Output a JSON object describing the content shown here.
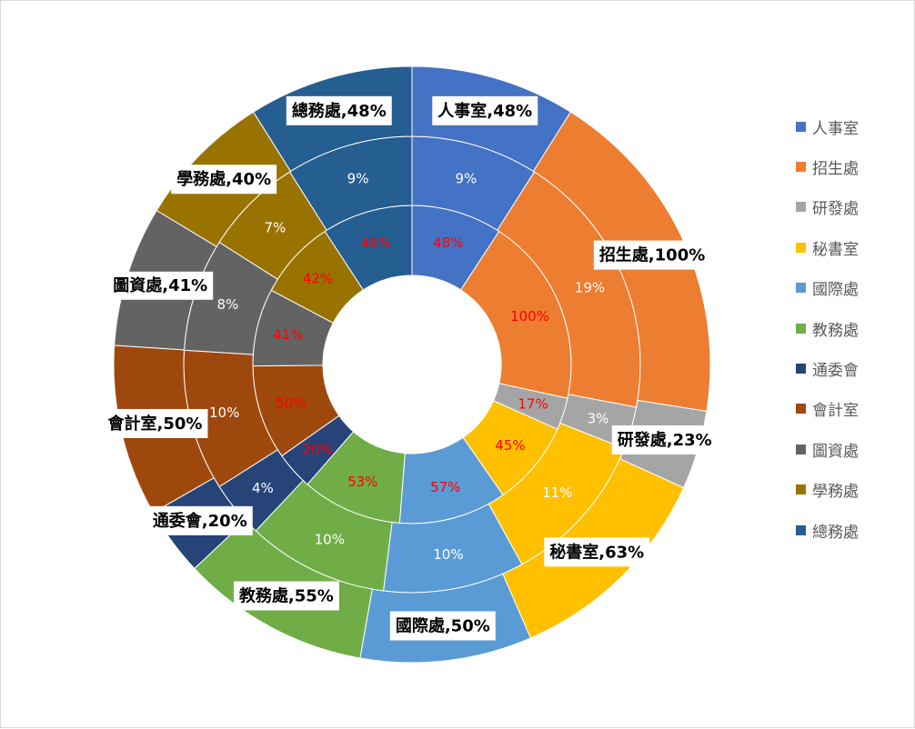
{
  "chart_data": {
    "type": "pie",
    "variant": "multi-ring-donut",
    "title": "",
    "categories": [
      "人事室",
      "招生處",
      "研發處",
      "秘書室",
      "國際處",
      "教務處",
      "通委會",
      "會計室",
      "圖資處",
      "學務處",
      "總務處"
    ],
    "colors": [
      "#4472C4",
      "#ED7D31",
      "#A5A5A5",
      "#FFC000",
      "#5B9BD5",
      "#70AD47",
      "#264478",
      "#9E480E",
      "#636363",
      "#997300",
      "#255E91"
    ],
    "series": [
      {
        "ring": "inner",
        "values": [
          48,
          100,
          17,
          45,
          57,
          53,
          20,
          50,
          41,
          42,
          48
        ],
        "labels": [
          "48%",
          "100%",
          "17%",
          "45%",
          "57%",
          "53%",
          "20%",
          "50%",
          "41%",
          "42%",
          "48%"
        ],
        "label_color": "#FF0000"
      },
      {
        "ring": "middle",
        "values": [
          9,
          19,
          3,
          11,
          10,
          10,
          4,
          10,
          8,
          7,
          9
        ],
        "labels": [
          "9%",
          "19%",
          "3%",
          "11%",
          "10%",
          "10%",
          "4%",
          "10%",
          "8%",
          "7%",
          "9%"
        ],
        "label_color": "#FFFFFF"
      },
      {
        "ring": "outer",
        "values": [
          48,
          100,
          23,
          63,
          50,
          55,
          20,
          50,
          41,
          40,
          48
        ],
        "labels": [
          "人事室,48%",
          "招生處,100%",
          "研發處,23%",
          "秘書室,63%",
          "國際處,50%",
          "教務處,55%",
          "通委會,20%",
          "會計室,50%",
          "圖資處,41%",
          "學務處,40%",
          "總務處,48%"
        ],
        "label_color": "#000000"
      }
    ],
    "legend": {
      "position": "right"
    }
  }
}
